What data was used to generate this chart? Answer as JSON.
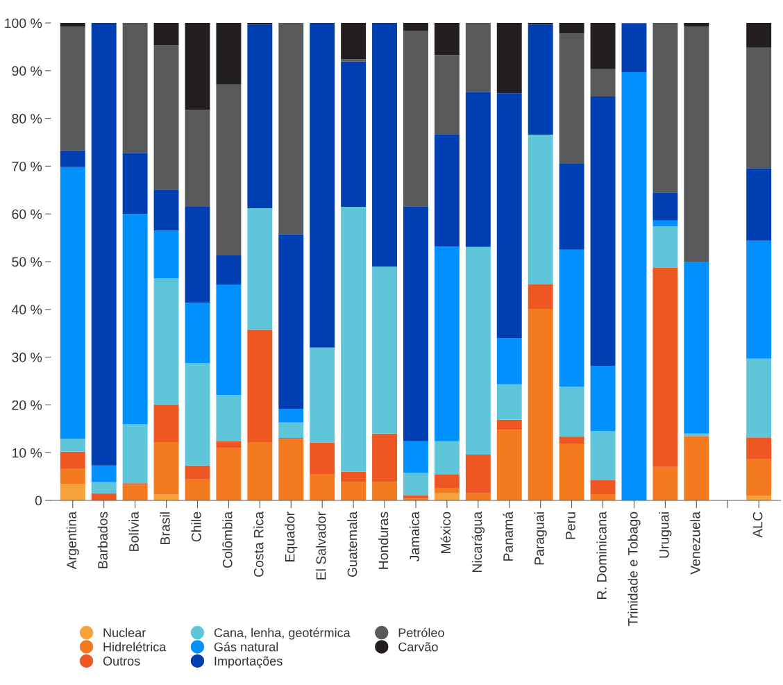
{
  "chart_data": {
    "type": "bar",
    "stacked": true,
    "categories": [
      "Argentina",
      "Barbados",
      "Bolívia",
      "Brasil",
      "Chile",
      "Colômbia",
      "Costa Rica",
      "Equador",
      "El Salvador",
      "Guatemala",
      "Honduras",
      "Jamaica",
      "México",
      "Nicarágua",
      "Panamá",
      "Paraguai",
      "Peru",
      "R. Dominicana",
      "Trinidade e Tobago",
      "Uruguai",
      "Venezuela",
      null,
      "ALC"
    ],
    "series": [
      {
        "name": "Nuclear",
        "color": "#f7a13b",
        "values": [
          3.5,
          0,
          0,
          1.2,
          0,
          0,
          0,
          0,
          0,
          0,
          0,
          0,
          1.5,
          0,
          0,
          0,
          0,
          0,
          0,
          0,
          0,
          null,
          1.0
        ]
      },
      {
        "name": "Hidrelétrica",
        "color": "#f37a1f",
        "values": [
          3.2,
          0,
          3.3,
          11.0,
          4.4,
          11.0,
          12.2,
          12.9,
          5.4,
          3.9,
          3.9,
          0.4,
          1.1,
          1.5,
          14.8,
          40.0,
          11.8,
          1.3,
          0,
          7.0,
          13.5,
          null,
          7.6
        ]
      },
      {
        "name": "Outros",
        "color": "#ee5622",
        "values": [
          3.5,
          1.5,
          0.3,
          7.9,
          2.9,
          1.4,
          23.6,
          0.2,
          6.7,
          2.1,
          10.1,
          0.6,
          2.9,
          8.1,
          2.1,
          5.3,
          1.6,
          2.9,
          0,
          41.7,
          0,
          null,
          4.6
        ]
      },
      {
        "name": "Cana, lenha, geotérmica",
        "color": "#5fc6da",
        "values": [
          2.7,
          2.3,
          12.4,
          26.4,
          21.5,
          9.7,
          25.4,
          3.2,
          19.9,
          55.5,
          35.0,
          4.8,
          6.9,
          43.5,
          7.4,
          31.3,
          10.4,
          10.3,
          0,
          8.7,
          0.5,
          null,
          16.5
        ]
      },
      {
        "name": "Gás natural",
        "color": "#0091ff",
        "values": [
          56.9,
          3.5,
          44.0,
          10.0,
          12.6,
          23.1,
          0,
          2.9,
          0,
          0,
          0,
          6.6,
          40.8,
          0,
          9.7,
          0,
          28.7,
          13.7,
          89.7,
          1.2,
          36.0,
          null,
          24.7
        ]
      },
      {
        "name": "Importações",
        "color": "#003fb1",
        "values": [
          3.5,
          92.7,
          12.8,
          8.6,
          20.1,
          6.1,
          38.5,
          36.5,
          68.0,
          30.4,
          51.0,
          49.2,
          23.5,
          32.5,
          51.3,
          23.1,
          18.0,
          56.4,
          10.2,
          5.9,
          0,
          null,
          15.2
        ]
      },
      {
        "name": "Petróleo",
        "color": "#58595b",
        "values": [
          26.0,
          0,
          27.2,
          30.2,
          20.3,
          35.8,
          0,
          44.3,
          0,
          0.5,
          0,
          36.7,
          16.6,
          14.4,
          0,
          0,
          27.3,
          5.7,
          0.1,
          35.4,
          49.3,
          null,
          25.2
        ]
      },
      {
        "name": "Carvão",
        "color": "#231f20",
        "values": [
          0.7,
          0,
          0,
          4.7,
          18.2,
          12.9,
          0.3,
          0,
          0,
          7.6,
          0,
          1.7,
          6.7,
          0,
          14.7,
          0.3,
          2.2,
          9.7,
          0,
          0.1,
          0.7,
          null,
          5.2
        ]
      }
    ],
    "ylim": [
      0,
      100
    ],
    "yticks": [
      {
        "value": 0,
        "label": "0"
      },
      {
        "value": 10,
        "label": "10 %"
      },
      {
        "value": 20,
        "label": "20 %"
      },
      {
        "value": 30,
        "label": "30 %"
      },
      {
        "value": 40,
        "label": "40 %"
      },
      {
        "value": 50,
        "label": "50 %"
      },
      {
        "value": 60,
        "label": "60 %"
      },
      {
        "value": 70,
        "label": "70 %"
      },
      {
        "value": 80,
        "label": "80 %"
      },
      {
        "value": 90,
        "label": "90 %"
      },
      {
        "value": 100,
        "label": "100 %"
      }
    ],
    "legend": "bottom",
    "marker": "circle",
    "grid": false
  }
}
